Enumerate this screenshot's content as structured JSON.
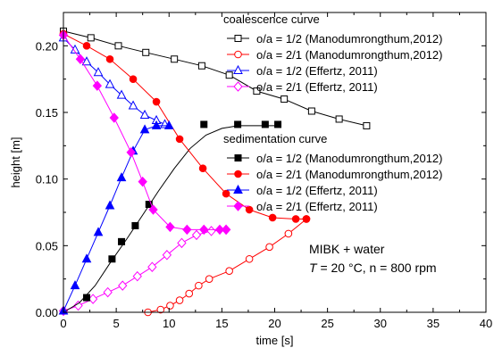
{
  "chart_data": {
    "type": "line",
    "xlabel": "time [s]",
    "ylabel": "height [m]",
    "xlim": [
      0,
      40
    ],
    "ylim": [
      0,
      0.225
    ],
    "x_ticks": [
      "0",
      "5",
      "10",
      "15",
      "20",
      "25",
      "30",
      "35",
      "40"
    ],
    "y_ticks": [
      "0.00",
      "0.05",
      "0.10",
      "0.15",
      "0.20"
    ],
    "grid": false,
    "legend_groups": [
      {
        "title": "coalescence curve",
        "entries": [
          0,
          1,
          2,
          3
        ]
      },
      {
        "title": "sedimentation curve",
        "entries": [
          4,
          5,
          6,
          7
        ]
      }
    ],
    "annotation": {
      "line1": "MIBK + water",
      "line2_italic": "T",
      "line2_rest": " = 20 °C, n = 800 rpm"
    },
    "series": [
      {
        "name": "o/a = 1/2  (Manodumrongthum,2012)",
        "color": "#000000",
        "marker": "square",
        "filled": false,
        "points": [
          [
            0,
            0.211
          ],
          [
            2.6,
            0.206
          ],
          [
            5.2,
            0.2
          ],
          [
            7.8,
            0.195
          ],
          [
            10.5,
            0.19
          ],
          [
            13.1,
            0.185
          ],
          [
            15.7,
            0.178
          ],
          [
            18.3,
            0.166
          ],
          [
            20.9,
            0.16
          ],
          [
            23.5,
            0.151
          ],
          [
            26.1,
            0.145
          ],
          [
            28.7,
            0.14
          ]
        ]
      },
      {
        "name": "o/a = 2/1  (Manodumrongthum,2012)",
        "color": "#ff0000",
        "marker": "circle",
        "filled": false,
        "points": [
          [
            8,
            0
          ],
          [
            9.2,
            0.002
          ],
          [
            10.1,
            0.005
          ],
          [
            11,
            0.009
          ],
          [
            11.9,
            0.014
          ],
          [
            12.8,
            0.02
          ],
          [
            13.8,
            0.025
          ],
          [
            15.7,
            0.031
          ],
          [
            17.6,
            0.04
          ],
          [
            19.5,
            0.049
          ],
          [
            21.3,
            0.059
          ],
          [
            23,
            0.07
          ]
        ]
      },
      {
        "name": "o/a = 1/2  (Effertz, 2011)",
        "color": "#0000ff",
        "marker": "triangle",
        "filled": false,
        "points": [
          [
            0,
            0.206
          ],
          [
            1.1,
            0.197
          ],
          [
            2.2,
            0.188
          ],
          [
            3.3,
            0.18
          ],
          [
            4.4,
            0.171
          ],
          [
            5.5,
            0.163
          ],
          [
            6.6,
            0.155
          ],
          [
            7.7,
            0.148
          ],
          [
            8.8,
            0.144
          ],
          [
            9.6,
            0.141
          ]
        ]
      },
      {
        "name": "o/a = 2/1  (Effertz, 2011)",
        "color": "#ff00ff",
        "marker": "diamond",
        "filled": false,
        "points": [
          [
            0,
            0.001
          ],
          [
            1.4,
            0.005
          ],
          [
            2.8,
            0.01
          ],
          [
            4.2,
            0.015
          ],
          [
            5.6,
            0.02
          ],
          [
            7,
            0.027
          ],
          [
            8.4,
            0.034
          ],
          [
            9.8,
            0.043
          ],
          [
            11.2,
            0.052
          ],
          [
            12.6,
            0.058
          ],
          [
            14,
            0.061
          ],
          [
            15.4,
            0.062
          ]
        ]
      },
      {
        "name": "o/a = 1/2  (Manodumrongthum,2012)",
        "color": "#000000",
        "marker": "square",
        "filled": true,
        "line": [
          [
            0,
            0
          ],
          [
            1.5,
            0.007
          ],
          [
            3,
            0.02
          ],
          [
            4.5,
            0.038
          ],
          [
            6,
            0.055
          ],
          [
            7.5,
            0.073
          ],
          [
            9,
            0.091
          ],
          [
            10.5,
            0.108
          ],
          [
            12,
            0.123
          ],
          [
            13.5,
            0.133
          ],
          [
            15,
            0.138
          ],
          [
            16.5,
            0.14
          ],
          [
            20,
            0.14
          ]
        ],
        "points": [
          [
            2.2,
            0.011
          ],
          [
            4.6,
            0.04
          ],
          [
            5.5,
            0.053
          ],
          [
            6.8,
            0.065
          ],
          [
            8.1,
            0.081
          ],
          [
            13.3,
            0.141
          ],
          [
            16.5,
            0.141
          ],
          [
            19.1,
            0.141
          ],
          [
            20.3,
            0.141
          ]
        ]
      },
      {
        "name": "o/a = 2/1  (Manodumrongthum,2012)",
        "color": "#ff0000",
        "marker": "circle",
        "filled": true,
        "points": [
          [
            0,
            0.209
          ],
          [
            2.2,
            0.2
          ],
          [
            4.4,
            0.19
          ],
          [
            6.6,
            0.175
          ],
          [
            8.8,
            0.158
          ],
          [
            11,
            0.13
          ],
          [
            13.2,
            0.108
          ],
          [
            15.4,
            0.089
          ],
          [
            17.6,
            0.077
          ],
          [
            19.8,
            0.071
          ],
          [
            22,
            0.07
          ],
          [
            23,
            0.07
          ]
        ]
      },
      {
        "name": "o/a = 1/2  (Effertz, 2011)",
        "color": "#0000ff",
        "marker": "triangle",
        "filled": true,
        "points": [
          [
            0,
            0.001
          ],
          [
            1.1,
            0.02
          ],
          [
            2.2,
            0.04
          ],
          [
            3.3,
            0.06
          ],
          [
            4.4,
            0.08
          ],
          [
            5.5,
            0.101
          ],
          [
            6.6,
            0.121
          ],
          [
            7.7,
            0.137
          ],
          [
            8.8,
            0.14
          ],
          [
            10,
            0.14
          ]
        ]
      },
      {
        "name": "o/a = 2/1  (Effertz, 2011)",
        "color": "#ff00ff",
        "marker": "diamond",
        "filled": true,
        "points": [
          [
            0,
            0.208
          ],
          [
            1.6,
            0.19
          ],
          [
            3.2,
            0.17
          ],
          [
            4.8,
            0.146
          ],
          [
            6.4,
            0.12
          ],
          [
            7.5,
            0.098
          ],
          [
            8.5,
            0.077
          ],
          [
            10.1,
            0.064
          ],
          [
            11.7,
            0.062
          ],
          [
            13.3,
            0.062
          ],
          [
            14.8,
            0.062
          ],
          [
            15.4,
            0.062
          ]
        ]
      }
    ]
  }
}
